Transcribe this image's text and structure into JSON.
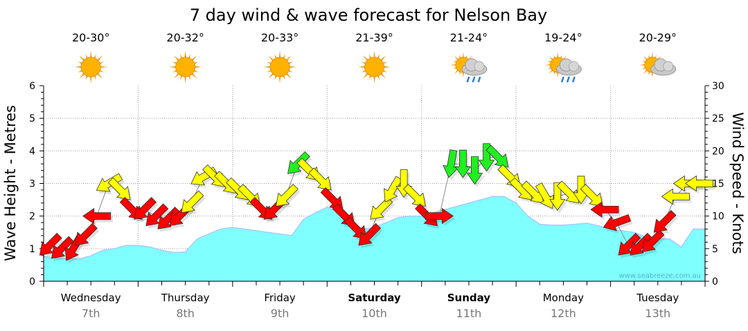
{
  "chart_data": {
    "type": "area",
    "title": "7 day wind & wave forecast for Nelson Bay",
    "ylabel_left": "Wave Height - Metres",
    "ylabel_right": "Wind Speed - Knots",
    "ylim_left": [
      0,
      6
    ],
    "ylim_right": [
      0,
      30
    ],
    "yticks_left": [
      "0",
      "1",
      "2",
      "3",
      "4",
      "5",
      "6"
    ],
    "yticks_right": [
      "0",
      "5",
      "10",
      "15",
      "20",
      "25",
      "30"
    ],
    "grid": true,
    "watermark": "www.seabreeze.com.au",
    "days": [
      {
        "name": "Wednesday",
        "date": "7th",
        "temp": "20-30°",
        "icon": "sunny-icon",
        "bold": false
      },
      {
        "name": "Thursday",
        "date": "8th",
        "temp": "20-32°",
        "icon": "sunny-icon",
        "bold": false
      },
      {
        "name": "Friday",
        "date": "9th",
        "temp": "20-33°",
        "icon": "sunny-icon",
        "bold": false
      },
      {
        "name": "Saturday",
        "date": "10th",
        "temp": "21-39°",
        "icon": "sunny-icon",
        "bold": true
      },
      {
        "name": "Sunday",
        "date": "11th",
        "temp": "21-24°",
        "icon": "sun-cloud-rain-icon",
        "bold": true
      },
      {
        "name": "Monday",
        "date": "12th",
        "temp": "19-24°",
        "icon": "sun-cloud-rain-icon",
        "bold": false
      },
      {
        "name": "Tuesday",
        "date": "13th",
        "temp": "20-29°",
        "icon": "sun-cloud-icon",
        "bold": false
      }
    ],
    "wave_series": {
      "name": "Wave height (m), 3-hourly",
      "values": [
        0.75,
        0.72,
        0.68,
        0.68,
        0.78,
        0.95,
        1.0,
        1.1,
        1.1,
        1.05,
        0.95,
        0.88,
        0.9,
        1.3,
        1.45,
        1.6,
        1.65,
        1.6,
        1.55,
        1.5,
        1.45,
        1.4,
        1.9,
        2.1,
        2.27,
        2.1,
        1.8,
        1.6,
        1.65,
        1.8,
        1.95,
        2.0,
        2.0,
        2.1,
        2.2,
        2.3,
        2.4,
        2.5,
        2.6,
        2.6,
        2.4,
        2.0,
        1.75,
        1.72,
        1.72,
        1.75,
        1.78,
        1.7,
        1.6,
        1.55,
        1.5,
        1.35,
        1.3,
        1.3,
        1.05,
        1.6,
        1.6
      ]
    },
    "wind_series": {
      "name": "Wind speed (knots) and arrow direction (deg, screen), 3-hourly",
      "speed": [
        5.5,
        5,
        5,
        7,
        10,
        15,
        14,
        11,
        11,
        10,
        9.5,
        10,
        12,
        16,
        16,
        15,
        14,
        13,
        11,
        11,
        13,
        18,
        17,
        15.5,
        12.5,
        10,
        8,
        7,
        11,
        14,
        15,
        13,
        10,
        10,
        18,
        18,
        17,
        19,
        19,
        16,
        14,
        13.5,
        13,
        13,
        13.5,
        14,
        13,
        11,
        9,
        5.5,
        5.5,
        6,
        9,
        13,
        15,
        15
      ],
      "direction": [
        135,
        135,
        120,
        135,
        180,
        150,
        45,
        45,
        135,
        135,
        135,
        135,
        135,
        150,
        45,
        45,
        45,
        45,
        45,
        135,
        135,
        135,
        45,
        45,
        45,
        45,
        45,
        135,
        135,
        120,
        90,
        45,
        45,
        0,
        100,
        90,
        90,
        90,
        45,
        45,
        45,
        45,
        60,
        90,
        45,
        90,
        45,
        180,
        160,
        135,
        135,
        135,
        135,
        180,
        180,
        180
      ],
      "category": [
        "r",
        "r",
        "r",
        "r",
        "r",
        "y",
        "y",
        "r",
        "r",
        "r",
        "r",
        "r",
        "y",
        "y",
        "y",
        "y",
        "y",
        "y",
        "r",
        "r",
        "y",
        "g",
        "y",
        "y",
        "r",
        "r",
        "r",
        "r",
        "y",
        "y",
        "y",
        "y",
        "r",
        "r",
        "g",
        "g",
        "g",
        "g",
        "g",
        "y",
        "y",
        "y",
        "y",
        "y",
        "y",
        "y",
        "y",
        "r",
        "r",
        "r",
        "r",
        "r",
        "r",
        "y",
        "y",
        "y"
      ]
    },
    "colors": {
      "r": "#ff0000",
      "y": "#ffff00",
      "g": "#22ee22",
      "wave": "#80ffff",
      "wave_line": "#a8c8ff"
    }
  }
}
